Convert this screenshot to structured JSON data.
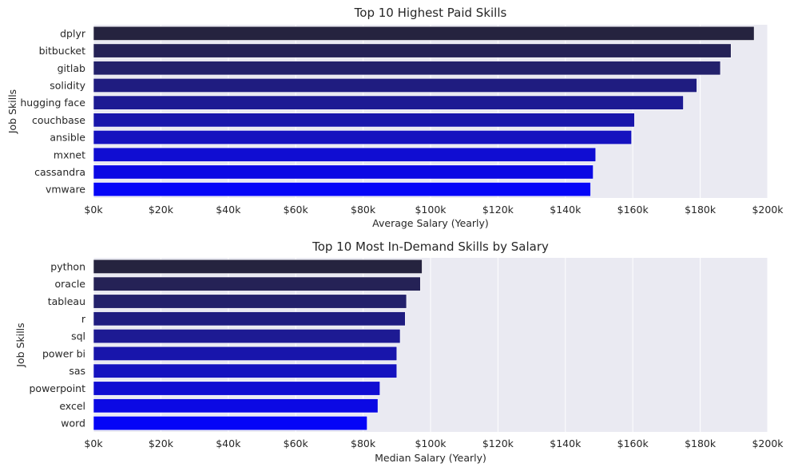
{
  "chart_data": [
    {
      "type": "bar",
      "orientation": "horizontal",
      "title": "Top 10 Highest Paid Skills",
      "xlabel": "Average Salary (Yearly)",
      "ylabel": "Job Skills",
      "categories": [
        "dplyr",
        "bitbucket",
        "gitlab",
        "solidity",
        "hugging face",
        "couchbase",
        "ansible",
        "mxnet",
        "cassandra",
        "vmware"
      ],
      "values": [
        196000,
        189155,
        186000,
        179000,
        175000,
        160515,
        159640,
        149000,
        148250,
        147500
      ],
      "xlim": [
        0,
        200000
      ],
      "xticks": [
        0,
        20000,
        40000,
        60000,
        80000,
        100000,
        120000,
        140000,
        160000,
        180000,
        200000
      ],
      "xtick_labels": [
        "$0k",
        "$20k",
        "$40k",
        "$60k",
        "$80k",
        "$100k",
        "$120k",
        "$140k",
        "$160k",
        "$180k",
        "$200k"
      ],
      "grid": true,
      "colors": [
        "#25233f",
        "#252256",
        "#23216b",
        "#1f1c80",
        "#1d1a93",
        "#1815ab",
        "#1512bf",
        "#100dd2",
        "#0b09e4",
        "#0505f7"
      ]
    },
    {
      "type": "bar",
      "orientation": "horizontal",
      "title": "Top 10 Most In-Demand Skills by Salary",
      "xlabel": "Median Salary (Yearly)",
      "ylabel": "Job Skills",
      "categories": [
        "python",
        "oracle",
        "tableau",
        "r",
        "sql",
        "power bi",
        "sas",
        "powerpoint",
        "excel",
        "word"
      ],
      "values": [
        97500,
        97000,
        92875,
        92500,
        91000,
        90000,
        90000,
        85000,
        84392,
        81194
      ],
      "xlim": [
        0,
        200000
      ],
      "xticks": [
        0,
        20000,
        40000,
        60000,
        80000,
        100000,
        120000,
        140000,
        160000,
        180000,
        200000
      ],
      "xtick_labels": [
        "$0k",
        "$20k",
        "$40k",
        "$60k",
        "$80k",
        "$100k",
        "$120k",
        "$140k",
        "$160k",
        "$180k",
        "$200k"
      ],
      "grid": true,
      "colors": [
        "#25233f",
        "#252256",
        "#23216b",
        "#1f1c80",
        "#1d1a93",
        "#1815ab",
        "#1512bf",
        "#100dd2",
        "#0b09e4",
        "#0505f7"
      ]
    }
  ]
}
